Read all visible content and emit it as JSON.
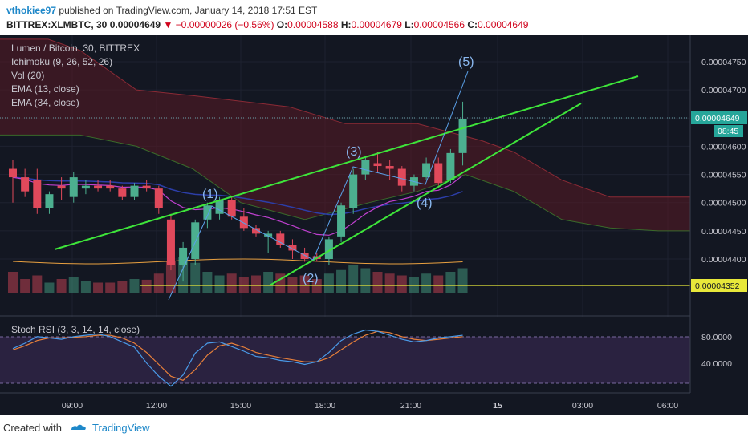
{
  "header": {
    "user": "vthokiee97",
    "published_text": "published on TradingView.com, January 14, 2018 17:51 EST",
    "symbol": "BITTREX:XLMBTC, 30",
    "last": "0.00004649",
    "arrow": "▼",
    "change": "−0.00000026 (−0.56%)",
    "o_label": "O:",
    "o_value": "0.00004588",
    "h_label": "H:",
    "h_value": "0.00004679",
    "l_label": "L:",
    "l_value": "0.00004566",
    "c_label": "C:",
    "c_value": "0.00004649"
  },
  "legend": {
    "line1": "Lumen / Bitcoin, 30, BITTREX",
    "line2": "Ichimoku (9, 26, 52, 26)",
    "line3": "Vol (20)",
    "line4": "EMA (13, close)",
    "line5": "EMA (34, close)"
  },
  "stoch_label": "Stoch RSI (3, 3, 14, 14, close)",
  "footer": {
    "created_with": "Created with",
    "brand": "TradingView"
  },
  "colors": {
    "pane_bg": "#131722",
    "stoch_band": "#2a2240",
    "up": "#4caf8f",
    "down": "#e0495b",
    "trend": "#3ee53a",
    "support": "#e8e83a",
    "cloud": "#5a1a24",
    "ema_fast": "#c040d0",
    "ema_slow": "#2c3ea8",
    "stoch_k": "#4a9ae8",
    "stoch_d": "#e8803a",
    "axis_text": "#c8c8d0",
    "price_tag": "#e8e83a",
    "last_tag": "#26a69a"
  },
  "chart_data": {
    "type": "candlestick",
    "price_axis_ticks": [
      "0.00004750",
      "0.00004700",
      "0.00004650",
      "0.00004600",
      "0.00004550",
      "0.00004500",
      "0.00004450",
      "0.00004400"
    ],
    "stoch_axis_ticks": [
      "80.0000",
      "40.0000"
    ],
    "time_axis_ticks": [
      "09:00",
      "12:00",
      "15:00",
      "18:00",
      "21:00",
      "15",
      "03:00",
      "06:00"
    ],
    "price_labels": {
      "last": "0.00004649",
      "countdown": "08:45",
      "support": "0.00004352"
    },
    "wave_labels": [
      "(1)",
      "(2)",
      "(3)",
      "(4)",
      "(5)"
    ],
    "ylim": [
      4.35e-05,
      4.78e-05
    ],
    "candles": [
      {
        "o": 4.56e-05,
        "h": 4.575e-05,
        "l": 4.5e-05,
        "c": 4.545e-05
      },
      {
        "o": 4.545e-05,
        "h": 4.56e-05,
        "l": 4.51e-05,
        "c": 4.52e-05
      },
      {
        "o": 4.54e-05,
        "h": 4.56e-05,
        "l": 4.48e-05,
        "c": 4.49e-05
      },
      {
        "o": 4.49e-05,
        "h": 4.52e-05,
        "l": 4.48e-05,
        "c": 4.515e-05
      },
      {
        "o": 4.53e-05,
        "h": 4.545e-05,
        "l": 4.505e-05,
        "c": 4.525e-05
      },
      {
        "o": 4.51e-05,
        "h": 4.555e-05,
        "l": 4.5e-05,
        "c": 4.545e-05
      },
      {
        "o": 4.525e-05,
        "h": 4.54e-05,
        "l": 4.515e-05,
        "c": 4.53e-05
      },
      {
        "o": 4.53e-05,
        "h": 4.54e-05,
        "l": 4.52e-05,
        "c": 4.525e-05
      },
      {
        "o": 4.53e-05,
        "h": 4.54e-05,
        "l": 4.52e-05,
        "c": 4.525e-05
      },
      {
        "o": 4.525e-05,
        "h": 4.53e-05,
        "l": 4.505e-05,
        "c": 4.51e-05
      },
      {
        "o": 4.51e-05,
        "h": 4.535e-05,
        "l": 4.505e-05,
        "c": 4.53e-05
      },
      {
        "o": 4.53e-05,
        "h": 4.54e-05,
        "l": 4.52e-05,
        "c": 4.525e-05
      },
      {
        "o": 4.525e-05,
        "h": 4.53e-05,
        "l": 4.48e-05,
        "c": 4.49e-05
      },
      {
        "o": 4.47e-05,
        "h": 4.48e-05,
        "l": 4.38e-05,
        "c": 4.39e-05
      },
      {
        "o": 4.39e-05,
        "h": 4.43e-05,
        "l": 4.36e-05,
        "c": 4.42e-05
      },
      {
        "o": 4.4e-05,
        "h": 4.47e-05,
        "l": 4.39e-05,
        "c": 4.465e-05
      },
      {
        "o": 4.47e-05,
        "h": 4.5e-05,
        "l": 4.455e-05,
        "c": 4.495e-05
      },
      {
        "o": 4.48e-05,
        "h": 4.51e-05,
        "l": 4.47e-05,
        "c": 4.505e-05
      },
      {
        "o": 4.505e-05,
        "h": 4.51e-05,
        "l": 4.47e-05,
        "c": 4.475e-05
      },
      {
        "o": 4.475e-05,
        "h": 4.49e-05,
        "l": 4.45e-05,
        "c": 4.455e-05
      },
      {
        "o": 4.455e-05,
        "h": 4.46e-05,
        "l": 4.44e-05,
        "c": 4.445e-05
      },
      {
        "o": 4.44e-05,
        "h": 4.45e-05,
        "l": 4.41e-05,
        "c": 4.445e-05
      },
      {
        "o": 4.445e-05,
        "h": 4.45e-05,
        "l": 4.42e-05,
        "c": 4.425e-05
      },
      {
        "o": 4.425e-05,
        "h": 4.435e-05,
        "l": 4.4e-05,
        "c": 4.415e-05
      },
      {
        "o": 4.41e-05,
        "h": 4.42e-05,
        "l": 4.395e-05,
        "c": 4.4e-05
      },
      {
        "o": 4.405e-05,
        "h": 4.41e-05,
        "l": 4.395e-05,
        "c": 4.4e-05
      },
      {
        "o": 4.4e-05,
        "h": 4.44e-05,
        "l": 4.39e-05,
        "c": 4.435e-05
      },
      {
        "o": 4.44e-05,
        "h": 4.5e-05,
        "l": 4.43e-05,
        "c": 4.495e-05
      },
      {
        "o": 4.49e-05,
        "h": 4.56e-05,
        "l": 4.48e-05,
        "c": 4.55e-05
      },
      {
        "o": 4.55e-05,
        "h": 4.58e-05,
        "l": 4.54e-05,
        "c": 4.575e-05
      },
      {
        "o": 4.57e-05,
        "h": 4.59e-05,
        "l": 4.555e-05,
        "c": 4.565e-05
      },
      {
        "o": 4.565e-05,
        "h": 4.575e-05,
        "l": 4.54e-05,
        "c": 4.56e-05
      },
      {
        "o": 4.56e-05,
        "h": 4.565e-05,
        "l": 4.52e-05,
        "c": 4.53e-05
      },
      {
        "o": 4.53e-05,
        "h": 4.55e-05,
        "l": 4.52e-05,
        "c": 4.545e-05
      },
      {
        "o": 4.545e-05,
        "h": 4.58e-05,
        "l": 4.54e-05,
        "c": 4.57e-05
      },
      {
        "o": 4.57e-05,
        "h": 4.58e-05,
        "l": 4.53e-05,
        "c": 4.535e-05
      },
      {
        "o": 4.54e-05,
        "h": 4.595e-05,
        "l": 4.535e-05,
        "c": 4.588e-05
      },
      {
        "o": 4.588e-05,
        "h": 4.679e-05,
        "l": 4.566e-05,
        "c": 4.649e-05
      }
    ],
    "volume": [
      0.6,
      0.4,
      0.5,
      0.3,
      0.4,
      0.45,
      0.35,
      0.3,
      0.3,
      0.35,
      0.4,
      0.38,
      0.55,
      0.9,
      1.0,
      0.85,
      0.6,
      0.5,
      0.55,
      0.45,
      0.5,
      0.6,
      0.55,
      0.45,
      0.5,
      0.4,
      0.55,
      0.65,
      0.8,
      0.7,
      0.6,
      0.55,
      0.5,
      0.45,
      0.55,
      0.5,
      0.6,
      0.7
    ],
    "stoch_k": [
      62,
      70,
      80,
      78,
      76,
      80,
      82,
      84,
      80,
      72,
      64,
      40,
      20,
      5,
      22,
      55,
      70,
      72,
      65,
      58,
      50,
      48,
      44,
      42,
      38,
      42,
      56,
      74,
      84,
      90,
      88,
      82,
      76,
      72,
      74,
      78,
      80,
      82
    ],
    "stoch_d": [
      60,
      66,
      74,
      78,
      78,
      79,
      80,
      82,
      82,
      78,
      70,
      56,
      38,
      20,
      14,
      30,
      52,
      66,
      70,
      64,
      56,
      52,
      48,
      45,
      42,
      42,
      48,
      60,
      72,
      82,
      88,
      86,
      80,
      76,
      74,
      76,
      78,
      80
    ]
  }
}
